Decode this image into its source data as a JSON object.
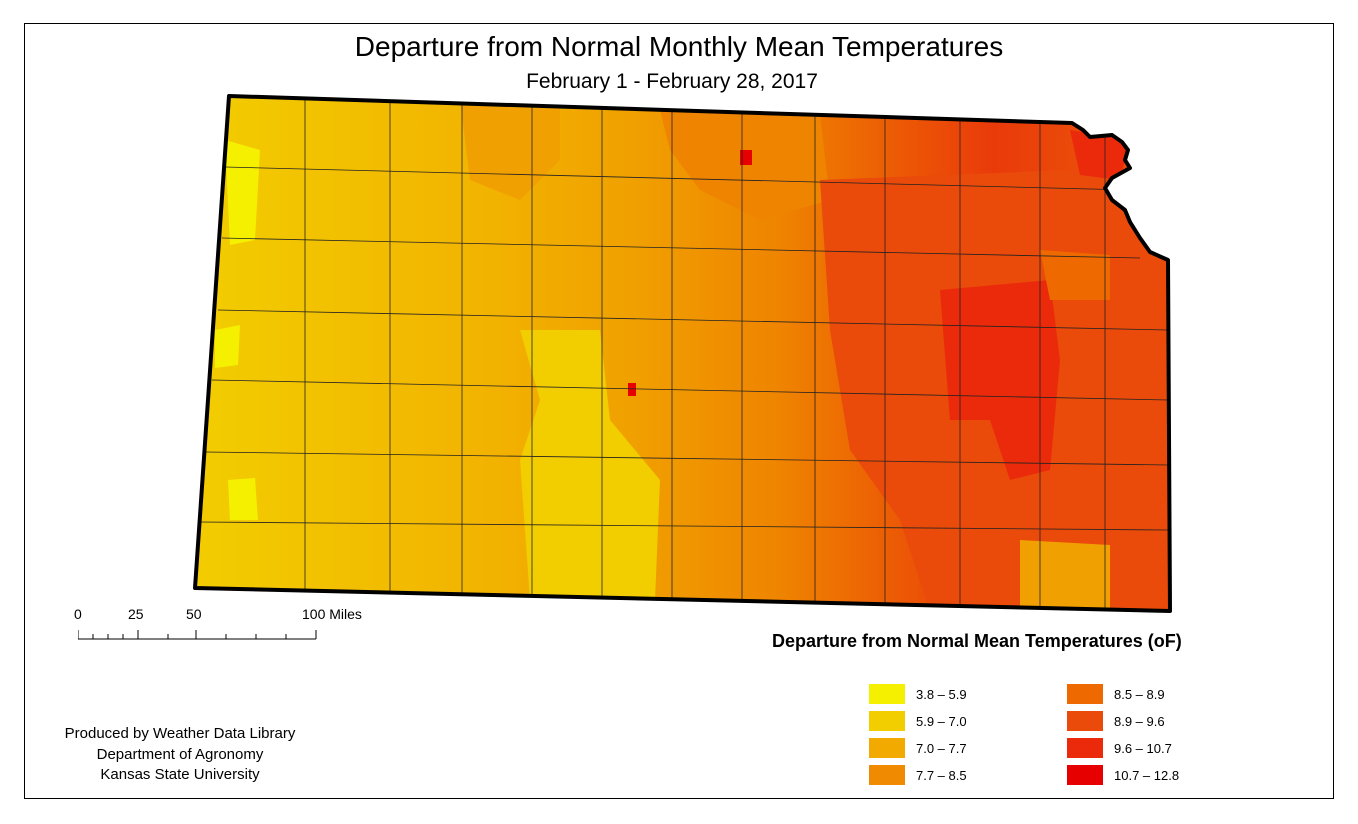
{
  "title": "Departure from Normal Monthly Mean Temperatures",
  "subtitle": "February 1 - February 28, 2017",
  "scale_bar": {
    "labels": [
      "0",
      "25",
      "50",
      "100 Miles"
    ]
  },
  "legend": {
    "title": "Departure from Normal Mean Temperatures (oF)",
    "items": [
      {
        "label": "3.8 – 5.9",
        "color": "#f5f000"
      },
      {
        "label": "5.9 – 7.0",
        "color": "#f2cd00"
      },
      {
        "label": "7.0 – 7.7",
        "color": "#f2aa00"
      },
      {
        "label": "7.7 – 8.5",
        "color": "#f08a00"
      },
      {
        "label": "8.5 – 8.9",
        "color": "#ee6a00"
      },
      {
        "label": "8.9 – 9.6",
        "color": "#ea4a0a"
      },
      {
        "label": "9.6 – 10.7",
        "color": "#ea2a0a"
      },
      {
        "label": "10.7 – 12.8",
        "color": "#e60000"
      }
    ]
  },
  "credits": {
    "line1": "Produced by Weather Data Library",
    "line2": "Department of Agronomy",
    "line3": "Kansas State University"
  },
  "map": {
    "region": "Kansas",
    "color_scale": [
      "#f5f000",
      "#f2cd00",
      "#f2aa00",
      "#f08a00",
      "#ee6a00",
      "#ea4a0a",
      "#ea2a0a",
      "#e60000"
    ]
  }
}
